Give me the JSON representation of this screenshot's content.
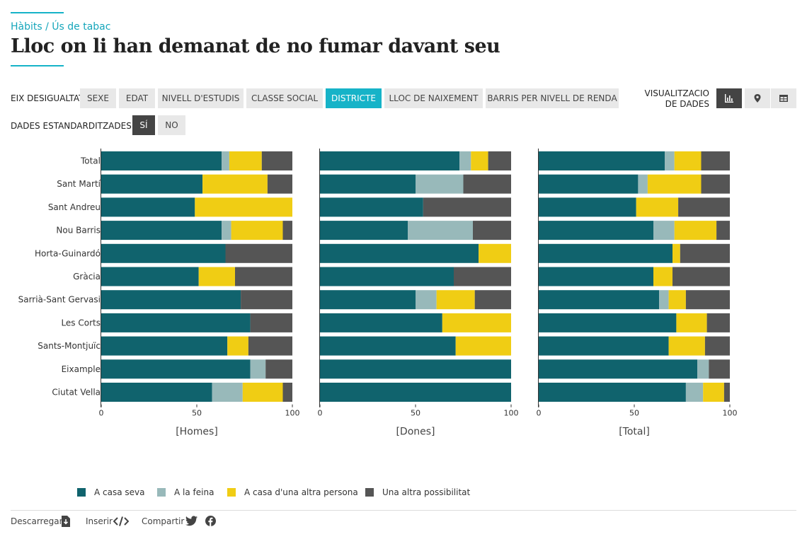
{
  "header": {
    "breadcrumb": "Hàbits / Ús de tabac",
    "title": "Lloc on li han demanat de no fumar davant seu"
  },
  "controls": {
    "axis_label": "EIX DESIGUALTAT",
    "axis_options": [
      "SEXE",
      "EDAT",
      "NIVELL D'ESTUDIS",
      "CLASSE SOCIAL",
      "DISTRICTE",
      "LLOC DE NAIXEMENT",
      "BARRIS PER NIVELL DE RENDA"
    ],
    "axis_selected": "DISTRICTE",
    "std_label": "DADES ESTANDARDITZADES",
    "std_yes": "SÍ",
    "std_no": "NO",
    "vis_label_1": "VISUALITZACIO",
    "vis_label_2": "DE DADES",
    "vis_icons": [
      "bar-chart-icon",
      "map-pin-icon",
      "table-icon"
    ]
  },
  "chart_data": {
    "type": "bar",
    "orientation": "horizontal",
    "stacked": true,
    "categories": [
      "Total",
      "Sant Martí",
      "Sant Andreu",
      "Nou Barris",
      "Horta-Guinardó",
      "Gràcia",
      "Sarrià-Sant Gervasi",
      "Les Corts",
      "Sants-Montjuïc",
      "Eixample",
      "Ciutat Vella"
    ],
    "xlim": [
      0,
      100
    ],
    "xticks": [
      0,
      50,
      100
    ],
    "series_names": [
      "A casa seva",
      "A la feina",
      "A casa d'una altra persona",
      "Una altra possibilitat"
    ],
    "colors": [
      "#10636d",
      "#98b9ba",
      "#f0cd14",
      "#555555"
    ],
    "panels": [
      {
        "title": "[Homes]",
        "values": [
          [
            63,
            4,
            17,
            16
          ],
          [
            53,
            0,
            34,
            13
          ],
          [
            49,
            0,
            51,
            0
          ],
          [
            63,
            5,
            27,
            5
          ],
          [
            65,
            0,
            0,
            35
          ],
          [
            51,
            0,
            19,
            30
          ],
          [
            73,
            0,
            0,
            27
          ],
          [
            78,
            0,
            0,
            22
          ],
          [
            66,
            0,
            11,
            23
          ],
          [
            78,
            8,
            0,
            14
          ],
          [
            58,
            16,
            21,
            5
          ]
        ]
      },
      {
        "title": "[Dones]",
        "values": [
          [
            73,
            6,
            9,
            12
          ],
          [
            50,
            25,
            0,
            25
          ],
          [
            54,
            0,
            0,
            46
          ],
          [
            46,
            34,
            0,
            20
          ],
          [
            83,
            0,
            17,
            0
          ],
          [
            70,
            0,
            0,
            30
          ],
          [
            50,
            11,
            20,
            19
          ],
          [
            64,
            0,
            36,
            0
          ],
          [
            71,
            0,
            29,
            0
          ],
          [
            100,
            0,
            0,
            0
          ],
          [
            100,
            0,
            0,
            0
          ]
        ]
      },
      {
        "title": "[Total]",
        "values": [
          [
            66,
            5,
            14,
            15
          ],
          [
            52,
            5,
            28,
            15
          ],
          [
            51,
            0,
            22,
            27
          ],
          [
            60,
            11,
            22,
            7
          ],
          [
            70,
            0,
            4,
            26
          ],
          [
            60,
            0,
            10,
            30
          ],
          [
            63,
            5,
            9,
            23
          ],
          [
            72,
            0,
            16,
            12
          ],
          [
            68,
            0,
            19,
            13
          ],
          [
            83,
            6,
            0,
            11
          ],
          [
            77,
            9,
            11,
            3
          ]
        ]
      }
    ],
    "legend_position": "bottom-left",
    "grid": false
  },
  "footer": {
    "download": "Descarregar",
    "embed": "Inserir",
    "share": "Compartir"
  }
}
